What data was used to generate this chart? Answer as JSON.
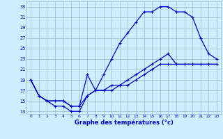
{
  "xlabel": "Graphe des températures (°c)",
  "x_ticks": [
    0,
    1,
    2,
    3,
    4,
    5,
    6,
    7,
    8,
    9,
    10,
    11,
    12,
    13,
    14,
    15,
    16,
    17,
    18,
    19,
    20,
    21,
    22,
    23
  ],
  "y_ticks": [
    13,
    15,
    17,
    19,
    21,
    23,
    25,
    27,
    29,
    31,
    33
  ],
  "ylim": [
    12.5,
    34
  ],
  "xlim": [
    -0.5,
    23.5
  ],
  "background_color": "#cceeff",
  "grid_color": "#99bbcc",
  "line_color": "#0000cc",
  "line_width": 0.9,
  "marker_size": 3.5,
  "curve1_y": [
    19,
    16,
    15,
    14,
    14,
    13,
    13,
    16,
    17,
    20,
    23,
    26,
    28,
    30,
    32,
    32,
    33,
    33,
    32,
    32,
    31,
    27,
    24,
    23
  ],
  "curve2_y": [
    19,
    16,
    15,
    15,
    15,
    14,
    14,
    20,
    17,
    17,
    18,
    18,
    19,
    20,
    21,
    22,
    23,
    24,
    22,
    22,
    22,
    22,
    22,
    22
  ],
  "curve3_y": [
    19,
    16,
    15,
    15,
    15,
    14,
    14,
    16,
    17,
    17,
    17,
    18,
    18,
    19,
    20,
    21,
    22,
    22,
    22,
    22,
    22,
    22,
    22,
    22
  ]
}
